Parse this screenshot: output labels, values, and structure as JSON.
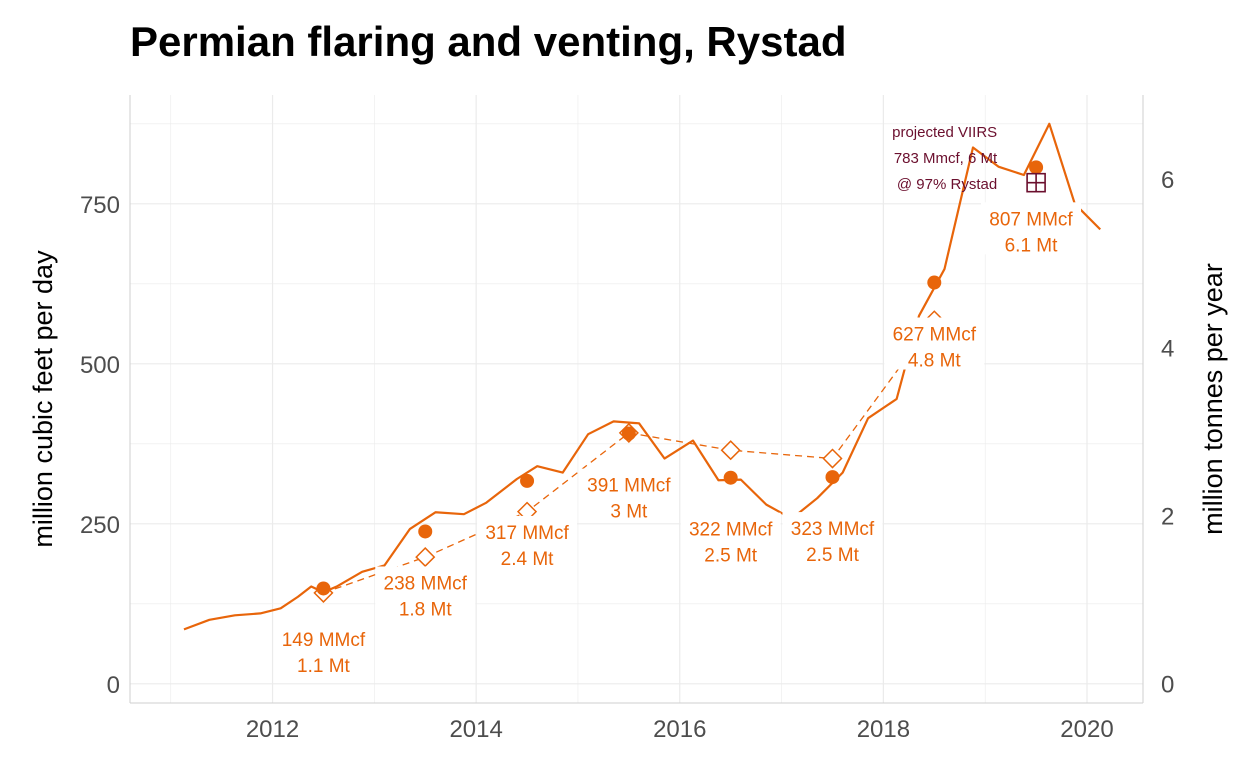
{
  "colors": {
    "series": "#E8650A",
    "viirs": "#6B0F2E",
    "grid": "#EBEBEB",
    "axis": "#CFCFCF",
    "tick_text": "#4D4D4D"
  },
  "chart_data": {
    "type": "line",
    "title": "Permian flaring and venting, Rystad",
    "ylabel": "million cubic feet per day",
    "y2label": "million tonnes per year",
    "xlim": [
      2010.6,
      2020.55
    ],
    "ylim": [
      -30,
      920
    ],
    "y2lim": [
      -0.23,
      7.0
    ],
    "x_ticks": [
      2012,
      2014,
      2016,
      2018,
      2020
    ],
    "y_ticks": [
      0,
      250,
      500,
      750
    ],
    "y2_ticks": [
      0,
      2,
      4,
      6
    ],
    "grid": true,
    "monthly_line": {
      "x": [
        2011.13,
        2011.38,
        2011.63,
        2011.88,
        2012.08,
        2012.25,
        2012.38,
        2012.5,
        2012.63,
        2012.88,
        2013.1,
        2013.35,
        2013.6,
        2013.88,
        2014.1,
        2014.4,
        2014.6,
        2014.85,
        2015.1,
        2015.35,
        2015.6,
        2015.85,
        2016.13,
        2016.38,
        2016.6,
        2016.85,
        2017.1,
        2017.35,
        2017.6,
        2017.85,
        2018.13,
        2018.35,
        2018.6,
        2018.88,
        2019.13,
        2019.38,
        2019.63,
        2019.88,
        2020.13
      ],
      "y": [
        85,
        100,
        107,
        110,
        118,
        136,
        152,
        143,
        152,
        175,
        185,
        242,
        268,
        265,
        283,
        320,
        340,
        330,
        390,
        410,
        407,
        352,
        380,
        318,
        319,
        280,
        258,
        290,
        330,
        415,
        445,
        575,
        648,
        838,
        808,
        795,
        875,
        750,
        710
      ]
    },
    "annual_avg": {
      "x": [
        2012.5,
        2013.5,
        2014.5,
        2015.5,
        2016.5,
        2017.5,
        2018.5,
        2019.5
      ],
      "y": [
        149,
        238,
        317,
        391,
        322,
        323,
        627,
        807
      ]
    },
    "dashed_line": {
      "x": [
        2012.5,
        2013.5,
        2014.5,
        2015.5,
        2016.5,
        2017.5,
        2018.5
      ],
      "y": [
        142,
        198,
        269,
        392,
        365,
        352,
        568
      ]
    },
    "viirs_point": {
      "x": 2019.5,
      "y": 783
    },
    "annotations": [
      {
        "x": 2012.5,
        "y": 150,
        "line1": "149 MMcf",
        "line2": "1.1 Mt"
      },
      {
        "x": 2013.5,
        "y": 238,
        "line1": "238 MMcf",
        "line2": "1.8 Mt"
      },
      {
        "x": 2014.5,
        "y": 317,
        "line1": "317 MMcf",
        "line2": "2.4 Mt"
      },
      {
        "x": 2015.5,
        "y": 391,
        "line1": "391 MMcf",
        "line2": "3 Mt"
      },
      {
        "x": 2016.5,
        "y": 322,
        "line1": "322 MMcf",
        "line2": "2.5 Mt"
      },
      {
        "x": 2017.5,
        "y": 323,
        "line1": "323 MMcf",
        "line2": "2.5 Mt"
      },
      {
        "x": 2018.5,
        "y": 627,
        "line1": "627 MMcf",
        "line2": "4.8 Mt"
      },
      {
        "x": 2019.45,
        "y": 807,
        "line1": "807 MMcf",
        "line2": "6.1 Mt"
      }
    ],
    "viirs_annotation": {
      "x": 2019.0,
      "y": 800,
      "lines": [
        "projected VIIRS",
        "783 Mmcf, 6 Mt",
        "@ 97% Rystad"
      ]
    }
  }
}
